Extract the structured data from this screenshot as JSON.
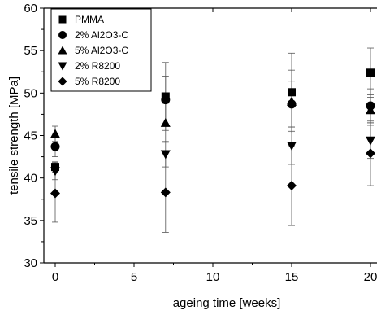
{
  "chart_data": {
    "type": "scatter",
    "title": "",
    "xlabel": "ageing time [weeks]",
    "ylabel": "tensile strength [MPa]",
    "xlim": [
      -1,
      21
    ],
    "ylim": [
      30,
      60
    ],
    "x_ticks": [
      0,
      5,
      10,
      15,
      20
    ],
    "x_tick_labels": [
      "0",
      "5",
      "10",
      "15",
      "20"
    ],
    "y_ticks": [
      30,
      35,
      40,
      45,
      50,
      55,
      60
    ],
    "y_tick_labels": [
      "30",
      "35",
      "40",
      "45",
      "50",
      "55",
      "60"
    ],
    "grid": false,
    "legend_position": "top-left",
    "series": [
      {
        "name": "PMMA",
        "marker": "square",
        "x": [
          0,
          7,
          15,
          20
        ],
        "y": [
          41.3,
          49.6,
          50.1,
          52.4
        ],
        "err": [
          0.6,
          4.0,
          4.6,
          2.9
        ]
      },
      {
        "name": "2% Al2O3-C",
        "marker": "circle",
        "x": [
          0,
          7,
          15,
          20
        ],
        "y": [
          43.7,
          49.2,
          48.7,
          48.5
        ],
        "err": [
          1.2,
          2.8,
          2.7,
          2.0
        ]
      },
      {
        "name": "5% Al2O3-C",
        "marker": "triangle-up",
        "x": [
          0,
          7,
          15,
          20
        ],
        "y": [
          45.2,
          46.5,
          49.0,
          48.0
        ],
        "err": [
          0.9,
          2.3,
          3.7,
          1.8
        ]
      },
      {
        "name": "2% R8200",
        "marker": "triangle-down",
        "x": [
          0,
          7,
          15,
          20
        ],
        "y": [
          40.8,
          42.8,
          43.8,
          44.4
        ],
        "err": [
          1.0,
          1.5,
          2.2,
          2.1
        ]
      },
      {
        "name": "5% R8200",
        "marker": "diamond",
        "x": [
          0,
          7,
          15,
          20
        ],
        "y": [
          38.2,
          38.3,
          39.1,
          42.9
        ],
        "err": [
          3.4,
          4.7,
          4.7,
          3.8
        ]
      }
    ]
  }
}
